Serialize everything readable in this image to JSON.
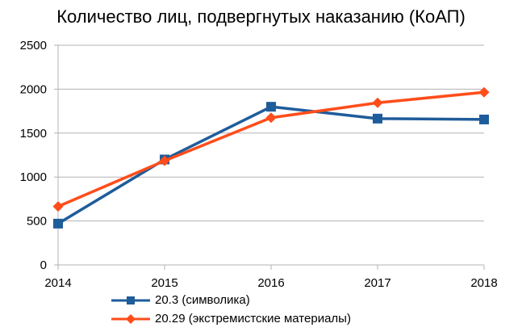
{
  "chart_data": {
    "type": "line",
    "title": "Количество лиц, подвергнутых наказанию (КоАП)",
    "x": [
      "2014",
      "2015",
      "2016",
      "2017",
      "2018"
    ],
    "ylim": [
      0,
      2500
    ],
    "yticks": [
      0,
      500,
      1000,
      1500,
      2000,
      2500
    ],
    "grid": "horizontal",
    "legend_position": "bottom",
    "series": [
      {
        "name": "20.3 (символика)",
        "values": [
          470,
          1200,
          1800,
          1665,
          1655
        ],
        "color": "#1f5c9a",
        "marker": "square"
      },
      {
        "name": "20.29 (экстремистские материалы)",
        "values": [
          665,
          1185,
          1675,
          1845,
          1965
        ],
        "color": "#ff4d1a",
        "marker": "diamond"
      }
    ]
  }
}
